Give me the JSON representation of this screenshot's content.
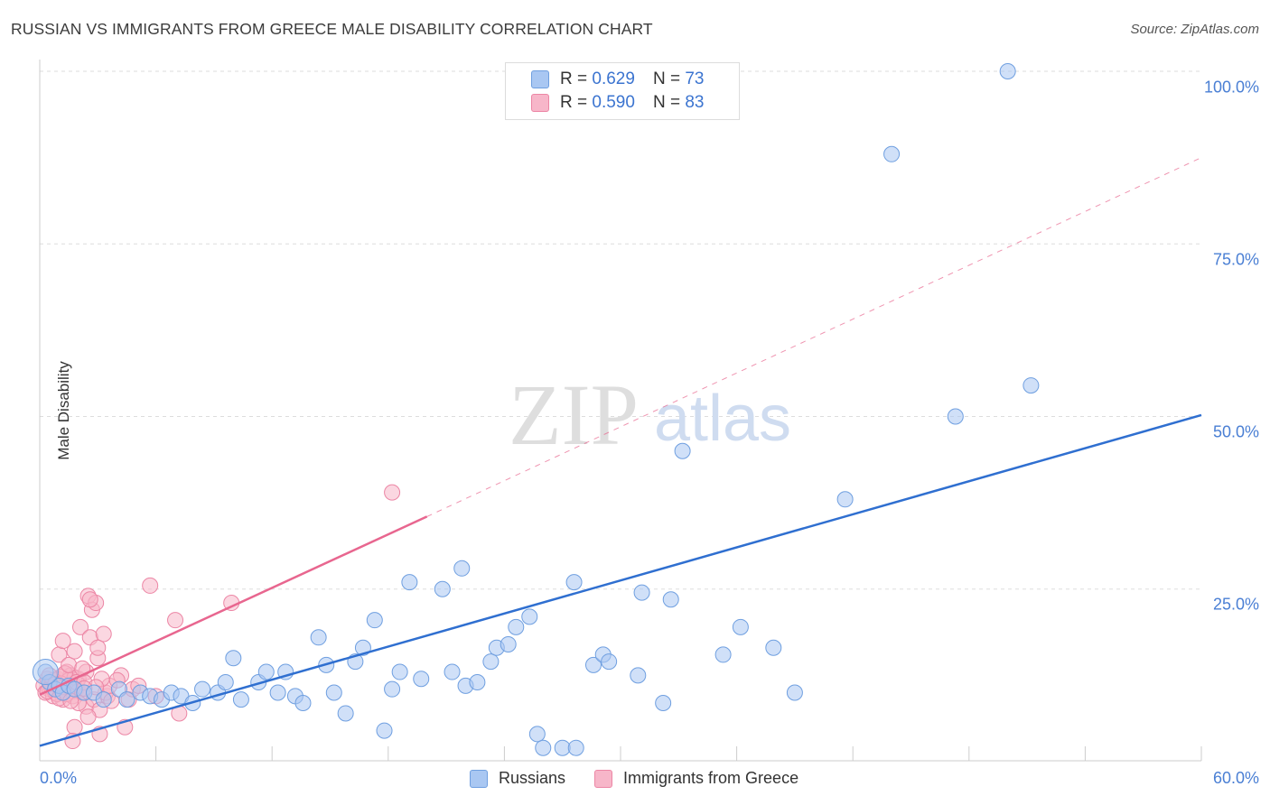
{
  "title": "RUSSIAN VS IMMIGRANTS FROM GREECE MALE DISABILITY CORRELATION CHART",
  "source": "Source: ZipAtlas.com",
  "watermark": {
    "zip": "ZIP",
    "atlas": "atlas"
  },
  "colors": {
    "blue_fill": "#a9c7f2",
    "blue_stroke": "#6f9fe0",
    "blue_line": "#2f6fd0",
    "pink_fill": "#f7b6c9",
    "pink_stroke": "#ec86a5",
    "pink_line": "#e8668f",
    "grid": "#dddddd",
    "tick_text": "#4a7fd4"
  },
  "legend": {
    "rows": [
      {
        "r_label": "R =",
        "r_value": "0.629",
        "n_label": "N =",
        "n_value": "73"
      },
      {
        "r_label": "R =",
        "r_value": "0.590",
        "n_label": "N =",
        "n_value": "83"
      }
    ]
  },
  "chart_data": {
    "type": "scatter",
    "title": "RUSSIAN VS IMMIGRANTS FROM GREECE MALE DISABILITY CORRELATION CHART",
    "xlabel": "",
    "ylabel": "Male Disability",
    "xlim": [
      0,
      60
    ],
    "ylim": [
      0,
      102
    ],
    "x_tick_labels": [
      "0.0%",
      "60.0%"
    ],
    "y_ticks": [
      25,
      50,
      75,
      100
    ],
    "y_tick_labels": [
      "25.0%",
      "50.0%",
      "75.0%",
      "100.0%"
    ],
    "grid": true,
    "legend_position": "top-center",
    "series": [
      {
        "name": "Russians",
        "color": "blue",
        "r": 0.629,
        "n": 73,
        "trend": {
          "x": [
            0,
            60
          ],
          "y": [
            2.3,
            50.2
          ],
          "dashed_extension": false
        },
        "points": [
          [
            0.3,
            13.0
          ],
          [
            0.5,
            11.5
          ],
          [
            0.8,
            10.5
          ],
          [
            1.0,
            11.0
          ],
          [
            1.2,
            10.0
          ],
          [
            1.5,
            11.0
          ],
          [
            1.8,
            10.5
          ],
          [
            2.3,
            10.0
          ],
          [
            2.8,
            10.0
          ],
          [
            3.3,
            9.0
          ],
          [
            4.1,
            10.5
          ],
          [
            4.5,
            9.0
          ],
          [
            5.2,
            10.0
          ],
          [
            5.7,
            9.5
          ],
          [
            6.3,
            9.0
          ],
          [
            6.8,
            10.0
          ],
          [
            7.3,
            9.5
          ],
          [
            7.9,
            8.5
          ],
          [
            8.4,
            10.5
          ],
          [
            9.2,
            10.0
          ],
          [
            9.6,
            11.5
          ],
          [
            10.0,
            15.0
          ],
          [
            10.4,
            9.0
          ],
          [
            11.3,
            11.5
          ],
          [
            11.7,
            13.0
          ],
          [
            12.3,
            10.0
          ],
          [
            12.7,
            13.0
          ],
          [
            13.2,
            9.5
          ],
          [
            13.6,
            8.5
          ],
          [
            14.4,
            18.0
          ],
          [
            14.8,
            14.0
          ],
          [
            15.2,
            10.0
          ],
          [
            15.8,
            7.0
          ],
          [
            16.3,
            14.5
          ],
          [
            16.7,
            16.5
          ],
          [
            17.3,
            20.5
          ],
          [
            17.8,
            4.5
          ],
          [
            18.2,
            10.5
          ],
          [
            18.6,
            13.0
          ],
          [
            19.1,
            26.0
          ],
          [
            19.7,
            12.0
          ],
          [
            20.8,
            25.0
          ],
          [
            21.3,
            13.0
          ],
          [
            21.8,
            28.0
          ],
          [
            22.0,
            11.0
          ],
          [
            22.6,
            11.5
          ],
          [
            23.3,
            14.5
          ],
          [
            23.6,
            16.5
          ],
          [
            24.2,
            17.0
          ],
          [
            24.6,
            19.5
          ],
          [
            25.3,
            21.0
          ],
          [
            25.7,
            4.0
          ],
          [
            26.0,
            2.0
          ],
          [
            27.0,
            2.0
          ],
          [
            27.6,
            26.0
          ],
          [
            27.7,
            2.0
          ],
          [
            28.6,
            14.0
          ],
          [
            29.1,
            15.5
          ],
          [
            29.4,
            14.5
          ],
          [
            30.9,
            12.5
          ],
          [
            31.1,
            24.5
          ],
          [
            32.2,
            8.5
          ],
          [
            32.6,
            23.5
          ],
          [
            33.2,
            45.0
          ],
          [
            35.3,
            15.5
          ],
          [
            36.2,
            19.5
          ],
          [
            37.9,
            16.5
          ],
          [
            39.0,
            10.0
          ],
          [
            41.6,
            38.0
          ],
          [
            44.0,
            88.0
          ],
          [
            47.3,
            50.0
          ],
          [
            50.0,
            100.0
          ],
          [
            51.2,
            54.5
          ]
        ]
      },
      {
        "name": "Immigrants from Greece",
        "color": "pink",
        "r": 0.59,
        "n": 83,
        "trend": {
          "x": [
            0,
            20
          ],
          "y": [
            9.7,
            35.5
          ],
          "dashed_to": [
            60,
            87.5
          ]
        },
        "points": [
          [
            0.2,
            11.0
          ],
          [
            0.3,
            10.0
          ],
          [
            0.4,
            12.0
          ],
          [
            0.5,
            10.5
          ],
          [
            0.6,
            11.5
          ],
          [
            0.7,
            9.5
          ],
          [
            0.8,
            10.0
          ],
          [
            0.9,
            12.0
          ],
          [
            1.0,
            11.0
          ],
          [
            1.1,
            10.0
          ],
          [
            1.2,
            9.0
          ],
          [
            1.3,
            11.5
          ],
          [
            1.4,
            13.0
          ],
          [
            1.5,
            10.0
          ],
          [
            1.6,
            12.5
          ],
          [
            1.7,
            9.5
          ],
          [
            1.8,
            11.0
          ],
          [
            1.9,
            10.5
          ],
          [
            2.0,
            12.0
          ],
          [
            0.6,
            10.8
          ],
          [
            0.9,
            9.8
          ],
          [
            1.1,
            12.3
          ],
          [
            1.3,
            10.3
          ],
          [
            1.5,
            11.8
          ],
          [
            1.7,
            10.2
          ],
          [
            0.4,
            10.2
          ],
          [
            0.7,
            11.8
          ],
          [
            1.0,
            9.2
          ],
          [
            1.2,
            10.8
          ],
          [
            1.4,
            9.8
          ],
          [
            1.6,
            10.9
          ],
          [
            1.8,
            12.2
          ],
          [
            2.0,
            10.2
          ],
          [
            0.5,
            12.5
          ],
          [
            0.8,
            11.2
          ],
          [
            1.1,
            11.3
          ],
          [
            1.3,
            12.8
          ],
          [
            1.9,
            11.5
          ],
          [
            1.0,
            15.5
          ],
          [
            1.2,
            17.5
          ],
          [
            1.5,
            14.0
          ],
          [
            1.8,
            16.0
          ],
          [
            2.1,
            19.5
          ],
          [
            2.4,
            13.0
          ],
          [
            2.6,
            18.0
          ],
          [
            3.0,
            15.0
          ],
          [
            3.3,
            18.5
          ],
          [
            2.5,
            24.0
          ],
          [
            2.7,
            22.0
          ],
          [
            2.9,
            23.0
          ],
          [
            2.6,
            23.5
          ],
          [
            3.0,
            16.5
          ],
          [
            3.5,
            9.5
          ],
          [
            2.2,
            10.0
          ],
          [
            2.3,
            11.5
          ],
          [
            2.4,
            8.0
          ],
          [
            2.8,
            9.0
          ],
          [
            3.1,
            7.5
          ],
          [
            3.4,
            10.0
          ],
          [
            1.8,
            5.0
          ],
          [
            1.7,
            3.0
          ],
          [
            2.5,
            6.5
          ],
          [
            3.1,
            4.0
          ],
          [
            3.6,
            11.0
          ],
          [
            4.2,
            12.5
          ],
          [
            4.6,
            9.0
          ],
          [
            4.4,
            5.0
          ],
          [
            4.8,
            10.5
          ],
          [
            5.1,
            11.0
          ],
          [
            5.7,
            25.5
          ],
          [
            6.0,
            9.5
          ],
          [
            7.0,
            20.5
          ],
          [
            7.2,
            7.0
          ],
          [
            9.9,
            23.0
          ],
          [
            18.2,
            39.0
          ],
          [
            2.0,
            8.5
          ],
          [
            3.2,
            12.0
          ],
          [
            2.2,
            13.5
          ],
          [
            1.6,
            8.8
          ],
          [
            2.9,
            10.8
          ],
          [
            4.0,
            11.8
          ],
          [
            3.7,
            8.8
          ],
          [
            2.3,
            10.6
          ]
        ]
      }
    ]
  },
  "bottom_legend": [
    {
      "label": "Russians",
      "color": "blue"
    },
    {
      "label": "Immigrants from Greece",
      "color": "pink"
    }
  ]
}
